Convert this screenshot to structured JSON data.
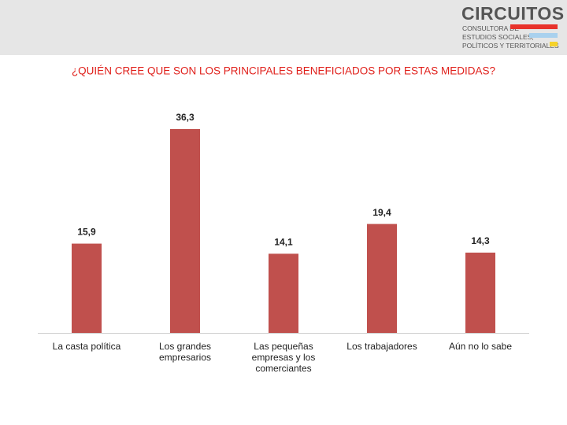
{
  "header": {
    "logo_name": "CIRCUITOS",
    "logo_lines": [
      "CONSULTORA DE",
      "ESTUDIOS SOCIALES,",
      "POLÍTICOS Y TERRITORIALES"
    ]
  },
  "chart_data": {
    "type": "bar",
    "title": "¿QUIÉN CREE QUE SON LOS PRINCIPALES BENEFICIADOS POR ESTAS MEDIDAS?",
    "categories": [
      "La casta política",
      "Los grandes empresarios",
      "Las pequeñas empresas y los comerciantes",
      "Los trabajadores",
      "Aún no lo sabe"
    ],
    "values": [
      15.9,
      36.3,
      14.1,
      19.4,
      14.3
    ],
    "value_labels": [
      "15,9",
      "36,3",
      "14,1",
      "19,4",
      "14,3"
    ],
    "color": "#c0504d"
  }
}
